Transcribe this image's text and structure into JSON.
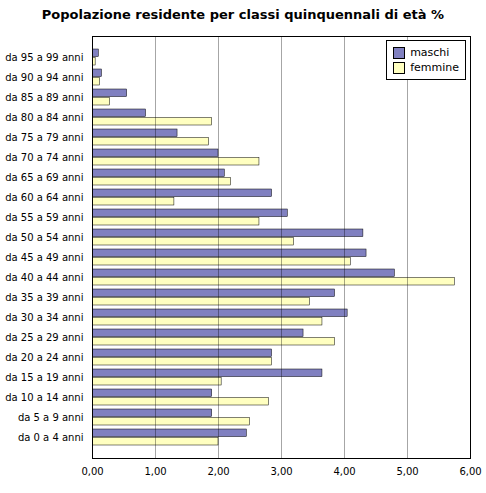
{
  "chart_data": {
    "type": "bar",
    "orientation": "horizontal",
    "title": "Popolazione residente per classi quinquennali di età %",
    "categories": [
      "da 95 a 99 anni",
      "da 90 a 94 anni",
      "da 85 a 89 anni",
      "da 80 a 84 anni",
      "da 75 a 79 anni",
      "da 70 a 74 anni",
      "da 65 a 69 anni",
      "da 60 a 64 anni",
      "da 55 a 59 anni",
      "da 50 a 54 anni",
      "da 45 a 49 anni",
      "da 40 a 44 anni",
      "da 35 a 39 anni",
      "da 30 a 34 anni",
      "da 25 a 29 anni",
      "da 20 a 24 anni",
      "da 15 a 19 anni",
      "da 10 a 14 anni",
      "da 5 a 9 anni",
      "da 0 a 4 anni"
    ],
    "series": [
      {
        "name": "maschi",
        "color": "#8080c0",
        "values": [
          0.1,
          0.15,
          0.55,
          0.85,
          1.35,
          2.0,
          2.1,
          2.85,
          3.1,
          4.3,
          4.35,
          4.8,
          3.85,
          4.05,
          3.35,
          2.85,
          3.65,
          1.9,
          1.9,
          2.45
        ]
      },
      {
        "name": "femmine",
        "color": "#ffffc0",
        "values": [
          0.05,
          0.12,
          0.28,
          1.9,
          1.85,
          2.65,
          2.2,
          1.3,
          2.65,
          3.2,
          4.1,
          5.75,
          3.45,
          3.65,
          3.85,
          2.85,
          2.05,
          2.8,
          2.5,
          2.0
        ]
      }
    ],
    "xlim": [
      0,
      6
    ],
    "xticks": [
      {
        "value": 0,
        "label": "0,00"
      },
      {
        "value": 1,
        "label": "1,00"
      },
      {
        "value": 2,
        "label": "2,00"
      },
      {
        "value": 3,
        "label": "3,00"
      },
      {
        "value": 4,
        "label": "4,00"
      },
      {
        "value": 5,
        "label": "5,00"
      },
      {
        "value": 6,
        "label": "6,00"
      }
    ],
    "grid": true,
    "legend": "upper right"
  }
}
